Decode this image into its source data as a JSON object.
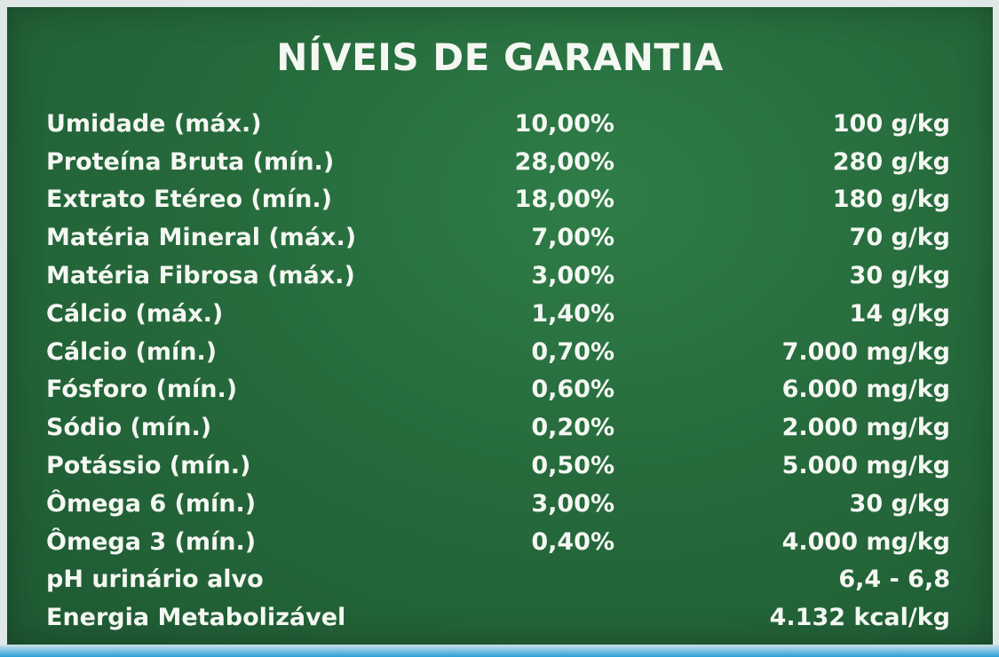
{
  "title": "NÍVEIS DE GARANTIA",
  "rows": [
    {
      "nutrient": "Umidade (máx.)",
      "percent": "10,00%",
      "amount": "100 g/kg"
    },
    {
      "nutrient": "Proteína Bruta (mín.)",
      "percent": "28,00%",
      "amount": "280 g/kg"
    },
    {
      "nutrient": "Extrato Etéreo (mín.)",
      "percent": "18,00%",
      "amount": "180 g/kg"
    },
    {
      "nutrient": "Matéria Mineral (máx.)",
      "percent": "7,00%",
      "amount": "70 g/kg"
    },
    {
      "nutrient": "Matéria Fibrosa (máx.)",
      "percent": "3,00%",
      "amount": "30 g/kg"
    },
    {
      "nutrient": "Cálcio (máx.)",
      "percent": "1,40%",
      "amount": "14 g/kg"
    },
    {
      "nutrient": "Cálcio (mín.)",
      "percent": "0,70%",
      "amount": "7.000 mg/kg"
    },
    {
      "nutrient": "Fósforo (mín.)",
      "percent": "0,60%",
      "amount": "6.000 mg/kg"
    },
    {
      "nutrient": "Sódio (mín.)",
      "percent": "0,20%",
      "amount": "2.000 mg/kg"
    },
    {
      "nutrient": "Potássio (mín.)",
      "percent": "0,50%",
      "amount": "5.000 mg/kg"
    },
    {
      "nutrient": "Ômega 6 (mín.)",
      "percent": "3,00%",
      "amount": "30 g/kg"
    },
    {
      "nutrient": "Ômega 3 (mín.)",
      "percent": "0,40%",
      "amount": "4.000 mg/kg"
    },
    {
      "nutrient": "pH urinário alvo",
      "percent": "",
      "amount": "6,4 - 6,8"
    },
    {
      "nutrient": "Energia Metabolizável",
      "percent": "",
      "amount": "4.132 kcal/kg"
    }
  ],
  "colors": {
    "panel_green": "#266a3c",
    "text": "#f4f7f2",
    "bottom_strip": "#2aa0d8"
  }
}
